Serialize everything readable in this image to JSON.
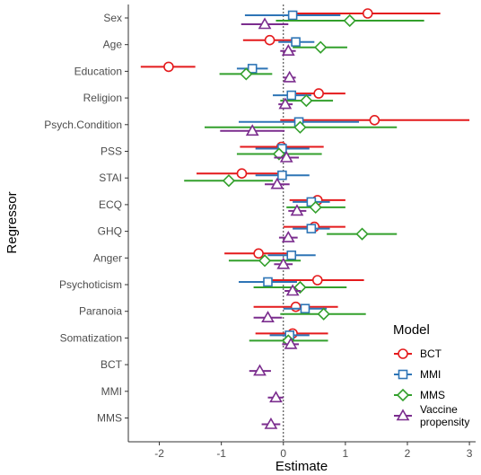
{
  "chart_data": {
    "type": "forest",
    "xlabel": "Estimate",
    "ylabel": "Regressor",
    "xlim": [
      -2.5,
      3.1
    ],
    "x_ticks": [
      -2,
      -1,
      0,
      1,
      2,
      3
    ],
    "reference_line_x": 0,
    "grid": false,
    "legend": {
      "title": "Model",
      "position": "bottom-right"
    },
    "categories": [
      "Sex",
      "Age",
      "Education",
      "Religion",
      "Psych.Condition",
      "PSS",
      "STAI",
      "ECQ",
      "GHQ",
      "Anger",
      "Psychoticism",
      "Paranoia",
      "Somatization",
      "BCT",
      "MMI",
      "MMS"
    ],
    "series": [
      {
        "name": "BCT",
        "color": "#e41a1c",
        "marker": "circle",
        "points": [
          {
            "category": "Sex",
            "estimate": 1.36,
            "low": 0.15,
            "high": 2.53
          },
          {
            "category": "Age",
            "estimate": -0.22,
            "low": -0.65,
            "high": 0.2
          },
          {
            "category": "Education",
            "estimate": -1.85,
            "low": -2.3,
            "high": -1.42
          },
          {
            "category": "Religion",
            "estimate": 0.57,
            "low": 0.12,
            "high": 1.0
          },
          {
            "category": "Psych.Condition",
            "estimate": 1.47,
            "low": -0.05,
            "high": 3.0
          },
          {
            "category": "PSS",
            "estimate": -0.03,
            "low": -0.7,
            "high": 0.65
          },
          {
            "category": "STAI",
            "estimate": -0.67,
            "low": -1.4,
            "high": 0.03
          },
          {
            "category": "ECQ",
            "estimate": 0.55,
            "low": 0.1,
            "high": 1.0
          },
          {
            "category": "GHQ",
            "estimate": 0.5,
            "low": 0.0,
            "high": 1.0
          },
          {
            "category": "Anger",
            "estimate": -0.4,
            "low": -0.95,
            "high": 0.15
          },
          {
            "category": "Psychoticism",
            "estimate": 0.55,
            "low": -0.2,
            "high": 1.3
          },
          {
            "category": "Paranoia",
            "estimate": 0.2,
            "low": -0.48,
            "high": 0.88
          },
          {
            "category": "Somatization",
            "estimate": 0.15,
            "low": -0.45,
            "high": 0.72
          }
        ]
      },
      {
        "name": "MMI",
        "color": "#2e75b6",
        "marker": "square",
        "points": [
          {
            "category": "Sex",
            "estimate": 0.15,
            "low": -0.62,
            "high": 0.92
          },
          {
            "category": "Age",
            "estimate": 0.2,
            "low": -0.08,
            "high": 0.5
          },
          {
            "category": "Education",
            "estimate": -0.5,
            "low": -0.75,
            "high": -0.25
          },
          {
            "category": "Religion",
            "estimate": 0.13,
            "low": -0.17,
            "high": 0.45
          },
          {
            "category": "Psych.Condition",
            "estimate": 0.25,
            "low": -0.72,
            "high": 1.22
          },
          {
            "category": "PSS",
            "estimate": -0.02,
            "low": -0.45,
            "high": 0.42
          },
          {
            "category": "STAI",
            "estimate": -0.02,
            "low": -0.45,
            "high": 0.42
          },
          {
            "category": "ECQ",
            "estimate": 0.45,
            "low": 0.15,
            "high": 0.75
          },
          {
            "category": "GHQ",
            "estimate": 0.45,
            "low": 0.15,
            "high": 0.75
          },
          {
            "category": "Anger",
            "estimate": 0.13,
            "low": -0.25,
            "high": 0.52
          },
          {
            "category": "Psychoticism",
            "estimate": -0.25,
            "low": -0.72,
            "high": 0.22
          },
          {
            "category": "Paranoia",
            "estimate": 0.35,
            "low": 0.0,
            "high": 0.7
          },
          {
            "category": "Somatization",
            "estimate": 0.1,
            "low": -0.22,
            "high": 0.42
          }
        ]
      },
      {
        "name": "MMS",
        "color": "#33a02c",
        "marker": "diamond",
        "points": [
          {
            "category": "Sex",
            "estimate": 1.07,
            "low": -0.12,
            "high": 2.27
          },
          {
            "category": "Age",
            "estimate": 0.6,
            "low": 0.15,
            "high": 1.03
          },
          {
            "category": "Education",
            "estimate": -0.6,
            "low": -1.03,
            "high": -0.18
          },
          {
            "category": "Religion",
            "estimate": 0.37,
            "low": -0.05,
            "high": 0.8
          },
          {
            "category": "Psych.Condition",
            "estimate": 0.27,
            "low": -1.27,
            "high": 1.83
          },
          {
            "category": "PSS",
            "estimate": -0.07,
            "low": -0.75,
            "high": 0.62
          },
          {
            "category": "STAI",
            "estimate": -0.88,
            "low": -1.6,
            "high": -0.17
          },
          {
            "category": "ECQ",
            "estimate": 0.52,
            "low": 0.05,
            "high": 1.0
          },
          {
            "category": "GHQ",
            "estimate": 1.27,
            "low": 0.7,
            "high": 1.83
          },
          {
            "category": "Anger",
            "estimate": -0.3,
            "low": -0.88,
            "high": 0.28
          },
          {
            "category": "Psychoticism",
            "estimate": 0.27,
            "low": -0.48,
            "high": 1.02
          },
          {
            "category": "Paranoia",
            "estimate": 0.65,
            "low": -0.05,
            "high": 1.33
          },
          {
            "category": "Somatization",
            "estimate": 0.08,
            "low": -0.55,
            "high": 0.72
          }
        ]
      },
      {
        "name": "Vaccine propensity",
        "color": "#7b2d8e",
        "marker": "triangle",
        "points": [
          {
            "category": "Sex",
            "estimate": -0.3,
            "low": -0.68,
            "high": 0.08
          },
          {
            "category": "Age",
            "estimate": 0.08,
            "low": -0.05,
            "high": 0.2
          },
          {
            "category": "Education",
            "estimate": 0.1,
            "low": 0.0,
            "high": 0.2
          },
          {
            "category": "Religion",
            "estimate": 0.03,
            "low": -0.08,
            "high": 0.15
          },
          {
            "category": "Psych.Condition",
            "estimate": -0.5,
            "low": -1.02,
            "high": 0.02
          },
          {
            "category": "PSS",
            "estimate": 0.05,
            "low": -0.15,
            "high": 0.25
          },
          {
            "category": "STAI",
            "estimate": -0.1,
            "low": -0.3,
            "high": 0.1
          },
          {
            "category": "ECQ",
            "estimate": 0.22,
            "low": 0.08,
            "high": 0.37
          },
          {
            "category": "GHQ",
            "estimate": 0.08,
            "low": -0.07,
            "high": 0.23
          },
          {
            "category": "Anger",
            "estimate": 0.0,
            "low": -0.15,
            "high": 0.15
          },
          {
            "category": "Psychoticism",
            "estimate": 0.15,
            "low": 0.02,
            "high": 0.28
          },
          {
            "category": "Paranoia",
            "estimate": -0.25,
            "low": -0.48,
            "high": -0.02
          },
          {
            "category": "Somatization",
            "estimate": 0.12,
            "low": -0.02,
            "high": 0.25
          },
          {
            "category": "BCT",
            "estimate": -0.38,
            "low": -0.55,
            "high": -0.2
          },
          {
            "category": "MMI",
            "estimate": -0.12,
            "low": -0.25,
            "high": 0.0
          },
          {
            "category": "MMS",
            "estimate": -0.2,
            "low": -0.35,
            "high": -0.05
          }
        ]
      }
    ]
  }
}
